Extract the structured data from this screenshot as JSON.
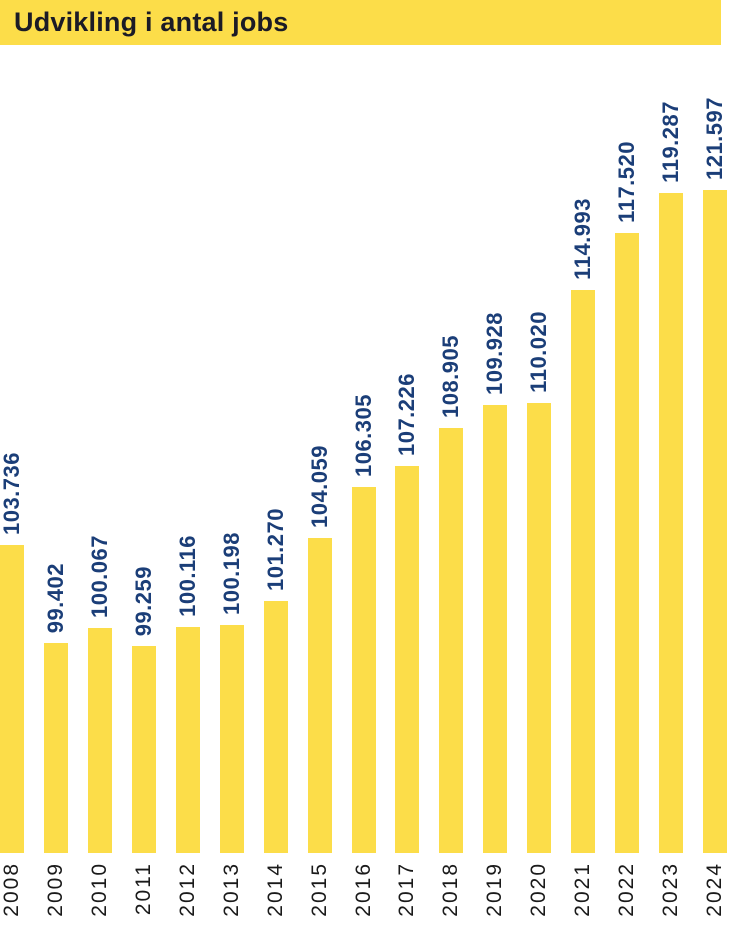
{
  "header": {
    "title": "Udvikling i antal jobs"
  },
  "colors": {
    "bar_yellow": "#FCDD49",
    "header_yellow": "#FCDD49",
    "value_label_blue": "#1B3E78",
    "year_label_dark": "#1A1A1A",
    "title_dark": "#1B1B26",
    "background": "#FFFFFF"
  },
  "chart_data": {
    "type": "bar",
    "title": "Udvikling i antal jobs",
    "xlabel": "",
    "ylabel": "",
    "orientation": "vertical",
    "grid": false,
    "legend": false,
    "value_labels_rotated": true,
    "category_labels_rotated": true,
    "ylim": [
      90000,
      122500
    ],
    "categories": [
      "2008",
      "2009",
      "2010",
      "2011",
      "2012",
      "2013",
      "2014",
      "2015",
      "2016",
      "2017",
      "2018",
      "2019",
      "2020",
      "2021",
      "2022",
      "2023",
      "2024"
    ],
    "values": [
      103736,
      99402,
      100067,
      99259,
      100116,
      100198,
      101270,
      104059,
      106305,
      107226,
      108905,
      109928,
      110020,
      114993,
      117520,
      119287,
      121597
    ],
    "value_labels": [
      "103.736",
      "99.402",
      "100.067",
      "99.259",
      "100.116",
      "100.198",
      "101.270",
      "104.059",
      "106.305",
      "107.226",
      "108.905",
      "109.928",
      "110.020",
      "114.993",
      "117.520",
      "119.287",
      "121.597"
    ]
  }
}
